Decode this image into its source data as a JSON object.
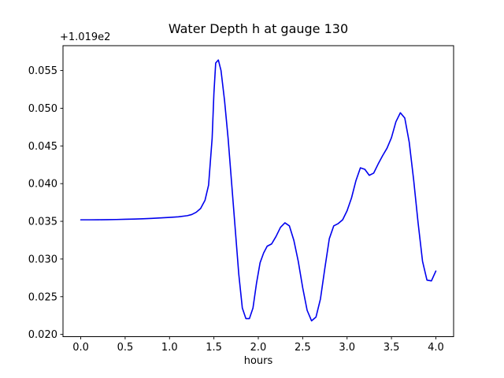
{
  "chart_data": {
    "type": "line",
    "title": "Water Depth h at gauge 130",
    "xlabel": "hours",
    "ylabel": "",
    "y_offset_label": "+1.019e2",
    "line_color": "#0000ee",
    "axis_color": "#000000",
    "background_color": "#ffffff",
    "legend": "none",
    "grid": false,
    "xlim": [
      -0.2,
      4.2
    ],
    "ylim": [
      0.0197,
      0.0583
    ],
    "xticks": [
      0.0,
      0.5,
      1.0,
      1.5,
      2.0,
      2.5,
      3.0,
      3.5,
      4.0
    ],
    "xtick_labels": [
      "0.0",
      "0.5",
      "1.0",
      "1.5",
      "2.0",
      "2.5",
      "3.0",
      "3.5",
      "4.0"
    ],
    "yticks": [
      0.02,
      0.025,
      0.03,
      0.035,
      0.04,
      0.045,
      0.05,
      0.055
    ],
    "ytick_labels": [
      "0.020",
      "0.025",
      "0.030",
      "0.035",
      "0.040",
      "0.045",
      "0.050",
      "0.055"
    ],
    "x": [
      0.0,
      0.1,
      0.2,
      0.3,
      0.4,
      0.5,
      0.6,
      0.7,
      0.8,
      0.9,
      1.0,
      1.1,
      1.2,
      1.25,
      1.3,
      1.35,
      1.4,
      1.44,
      1.48,
      1.5,
      1.52,
      1.55,
      1.58,
      1.62,
      1.66,
      1.7,
      1.74,
      1.78,
      1.82,
      1.86,
      1.9,
      1.94,
      1.98,
      2.02,
      2.06,
      2.1,
      2.15,
      2.2,
      2.25,
      2.3,
      2.35,
      2.4,
      2.45,
      2.5,
      2.55,
      2.6,
      2.65,
      2.7,
      2.75,
      2.8,
      2.85,
      2.9,
      2.95,
      3.0,
      3.05,
      3.1,
      3.15,
      3.2,
      3.25,
      3.3,
      3.35,
      3.4,
      3.45,
      3.5,
      3.55,
      3.6,
      3.65,
      3.7,
      3.75,
      3.8,
      3.85,
      3.9,
      3.95,
      4.0
    ],
    "y": [
      0.0352,
      0.0352,
      0.03521,
      0.03522,
      0.03524,
      0.03527,
      0.0353,
      0.03534,
      0.03539,
      0.03545,
      0.03552,
      0.0356,
      0.03575,
      0.0359,
      0.0362,
      0.0367,
      0.0378,
      0.0398,
      0.046,
      0.052,
      0.056,
      0.0564,
      0.055,
      0.051,
      0.046,
      0.04,
      0.034,
      0.028,
      0.0235,
      0.0221,
      0.0221,
      0.0235,
      0.0268,
      0.0295,
      0.0308,
      0.0317,
      0.032,
      0.033,
      0.0342,
      0.0348,
      0.0344,
      0.0325,
      0.0297,
      0.0262,
      0.0232,
      0.0218,
      0.0223,
      0.0247,
      0.0288,
      0.0327,
      0.0344,
      0.0347,
      0.0352,
      0.0364,
      0.0381,
      0.0404,
      0.0421,
      0.0419,
      0.0411,
      0.0414,
      0.0426,
      0.0437,
      0.0447,
      0.0461,
      0.0482,
      0.0494,
      0.0487,
      0.0455,
      0.0405,
      0.0348,
      0.0297,
      0.0272,
      0.0271,
      0.0284
    ]
  }
}
